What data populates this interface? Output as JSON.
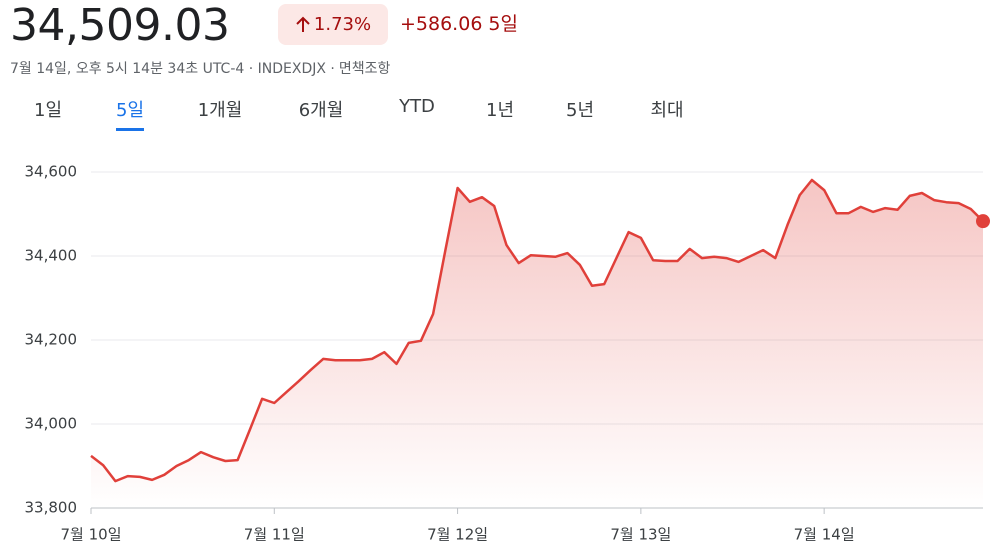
{
  "header": {
    "price": "34,509.03",
    "change_pct": "1.73%",
    "change": "+586.06",
    "period": "5일",
    "subtitle": "7월 14일, 오후 5시 14분 34초 UTC-4 · INDEXDJX ·",
    "disclaimer": "면책조항"
  },
  "tabs": [
    "1일",
    "5일",
    "1개월",
    "6개월",
    "YTD",
    "1년",
    "5년",
    "최대"
  ],
  "selected_tab": 1,
  "chart_data": {
    "type": "area",
    "categories": [
      "7월 10일",
      null,
      null,
      null,
      null,
      null,
      null,
      null,
      null,
      null,
      null,
      null,
      null,
      null,
      null,
      "7월 11일",
      null,
      null,
      null,
      null,
      null,
      null,
      null,
      null,
      null,
      null,
      null,
      null,
      null,
      null,
      "7월 12일",
      null,
      null,
      null,
      null,
      null,
      null,
      null,
      null,
      null,
      null,
      null,
      null,
      null,
      null,
      "7월 13일",
      null,
      null,
      null,
      null,
      null,
      null,
      null,
      null,
      null,
      null,
      null,
      null,
      null,
      null,
      "7월 14일",
      null,
      null,
      null,
      null,
      null,
      null,
      null,
      null,
      null,
      null,
      null,
      null,
      null
    ],
    "values": [
      33924,
      33902,
      33864,
      33876,
      33874,
      33867,
      33879,
      33900,
      33914,
      33933,
      33921,
      33912,
      33914,
      33986,
      34060,
      34050,
      34076,
      34102,
      34129,
      34155,
      34152,
      34152,
      34152,
      34155,
      34171,
      34143,
      34193,
      34198,
      34262,
      34414,
      34562,
      34529,
      34540,
      34519,
      34426,
      34383,
      34402,
      34400,
      34398,
      34407,
      34379,
      34329,
      34333,
      34395,
      34457,
      34443,
      34390,
      34388,
      34388,
      34417,
      34395,
      34398,
      34395,
      34386,
      34400,
      34414,
      34395,
      34474,
      34545,
      34581,
      34557,
      34502,
      34502,
      34517,
      34505,
      34514,
      34510,
      34543,
      34550,
      34533,
      34528,
      34526,
      34512,
      34483
    ],
    "color": "#e0403a",
    "ylim": [
      33800,
      34600
    ],
    "yticks": [
      {
        "value": 33800,
        "label": "33,800"
      },
      {
        "value": 34000,
        "label": "34,000"
      },
      {
        "value": 34200,
        "label": "34,200"
      },
      {
        "value": 34400,
        "label": "34,400"
      },
      {
        "value": 34600,
        "label": "34,600"
      }
    ],
    "grid": true
  }
}
